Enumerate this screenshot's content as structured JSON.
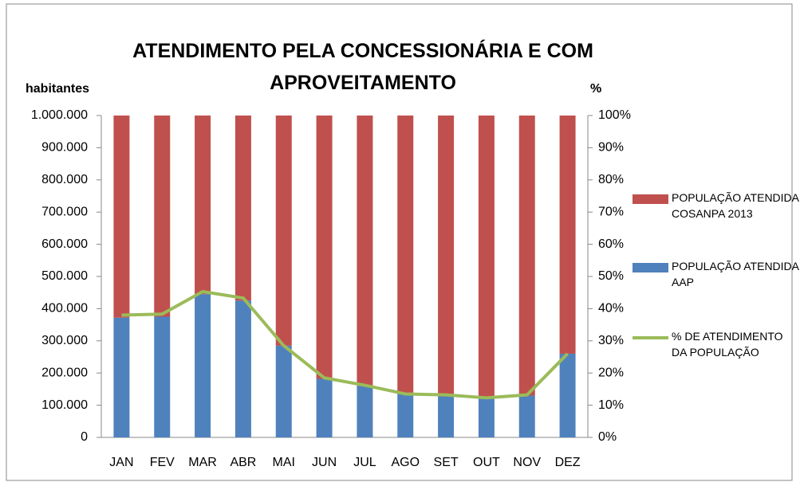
{
  "chart_data": {
    "type": "bar",
    "stacked": true,
    "title": "ATENDIMENTO PELA CONCESSIONÁRIA E COM APROVEITAMENTO",
    "y_label": "habitantes",
    "y2_label": "%",
    "categories": [
      "JAN",
      "FEV",
      "MAR",
      "ABR",
      "MAI",
      "JUN",
      "JUL",
      "AGO",
      "SET",
      "OUT",
      "NOV",
      "DEZ"
    ],
    "series": [
      {
        "name": "POPULAÇÃO ATENDIDA AAP",
        "color": "#4f81bd",
        "values": [
          372000,
          375000,
          445000,
          425000,
          285000,
          182000,
          160000,
          135000,
          130000,
          122000,
          130000,
          260000
        ]
      },
      {
        "name": "POPULAÇÃO ATENDIDA COSANPA 2013",
        "color": "#c0504d",
        "values": [
          628000,
          625000,
          555000,
          575000,
          715000,
          818000,
          840000,
          865000,
          870000,
          878000,
          870000,
          740000
        ]
      },
      {
        "name": "% DE ATENDIMENTO DA POPULAÇÃO",
        "color": "#9bbb59",
        "type": "line",
        "axis": "y2",
        "values": [
          38,
          38.3,
          45.3,
          43.3,
          28.5,
          18.5,
          16.2,
          13.5,
          13.2,
          12.3,
          13.2,
          26
        ]
      }
    ],
    "ylim": [
      0,
      1000000
    ],
    "yticks": [
      0,
      {
        "value": 100000,
        "label": "100.000"
      },
      {
        "value": 200000,
        "label": "200.000"
      },
      {
        "value": 300000,
        "label": "300.000"
      },
      {
        "value": 400000,
        "label": "400.000"
      },
      {
        "value": 500000,
        "label": "500.000"
      },
      {
        "value": 600000,
        "label": "600.000"
      },
      {
        "value": 700000,
        "label": "700.000"
      },
      {
        "value": 800000,
        "label": "800.000"
      },
      {
        "value": 900000,
        "label": "900.000"
      },
      {
        "value": 1000000,
        "label": "1.000.000"
      }
    ],
    "y2lim": [
      0,
      100
    ],
    "y2ticks": [
      {
        "value": 0,
        "label": "0%"
      },
      {
        "value": 10,
        "label": "10%"
      },
      {
        "value": 20,
        "label": "20%"
      },
      {
        "value": 30,
        "label": "30%"
      },
      {
        "value": 40,
        "label": "40%"
      },
      {
        "value": 50,
        "label": "50%"
      },
      {
        "value": 60,
        "label": "60%"
      },
      {
        "value": 70,
        "label": "70%"
      },
      {
        "value": 80,
        "label": "80%"
      },
      {
        "value": 90,
        "label": "90%"
      },
      {
        "value": 100,
        "label": "100%"
      }
    ],
    "legend": "right"
  }
}
